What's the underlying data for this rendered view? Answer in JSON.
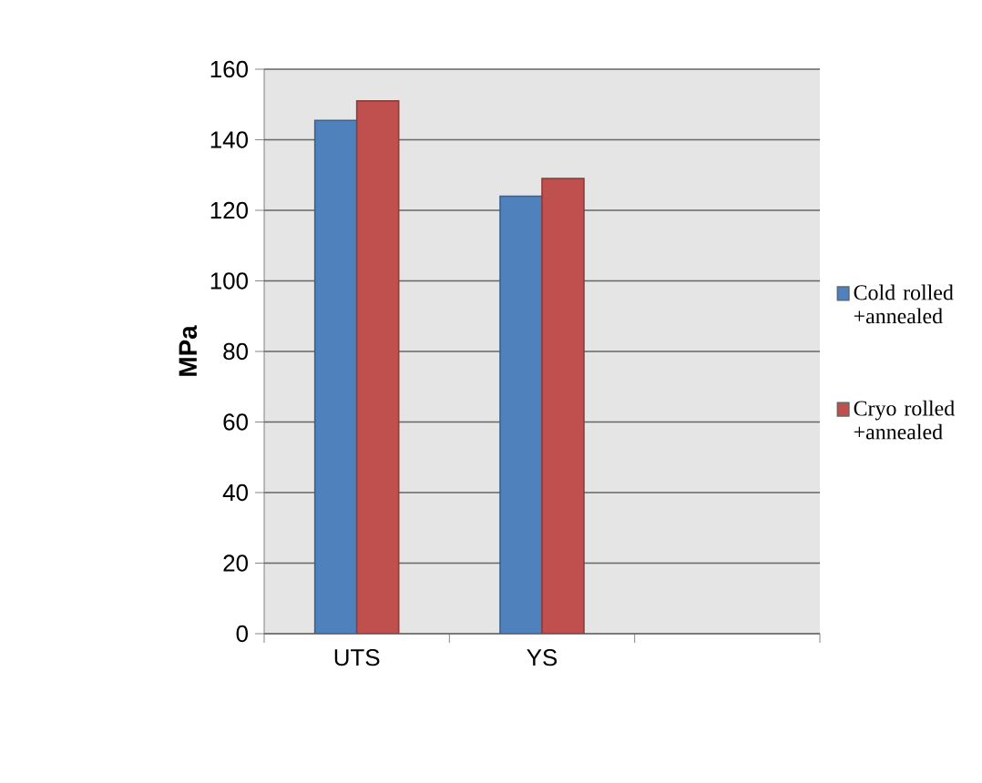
{
  "chart_data": {
    "type": "bar",
    "ylabel": "MPa",
    "categories": [
      "UTS",
      "YS",
      null
    ],
    "series": [
      {
        "name": "Cold rolled +annealed",
        "color": "#4f81bd",
        "values": [
          145.5,
          124,
          null
        ]
      },
      {
        "name": "Cryo rolled +annealed",
        "color": "#c0504d",
        "values": [
          151,
          129,
          null
        ]
      }
    ],
    "ylim": [
      0,
      160
    ],
    "yticks": [
      0,
      20,
      40,
      60,
      80,
      100,
      120,
      140,
      160
    ],
    "grid": "y",
    "legend": "right"
  }
}
